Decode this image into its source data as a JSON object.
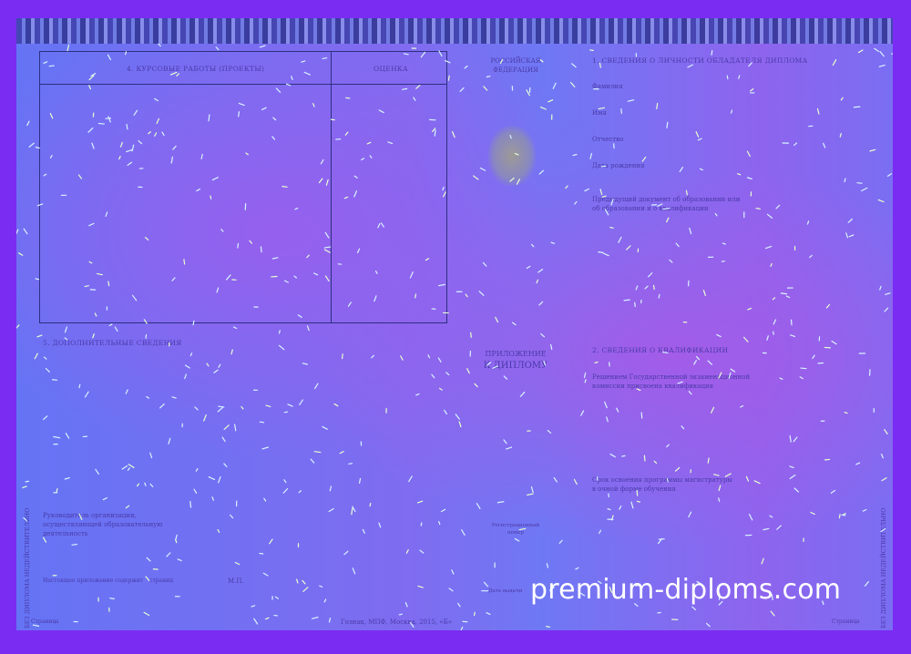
{
  "left_page": {
    "table": {
      "col1_header": "4. КУРСОВЫЕ РАБОТЫ (ПРОЕКТЫ)",
      "col2_header": "ОЦЕНКА"
    },
    "section5_title": "5. ДОПОЛНИТЕЛЬНЫЕ СВЕДЕНИЯ",
    "head_line1": "Руководитель организации,",
    "head_line2": "осуществляющей образовательную",
    "head_line3": "деятельность",
    "stamp_place": "М.П.",
    "pages_text": "Настоящее приложение содержит",
    "pages_suffix": "страниц",
    "page_label": "Страница",
    "printer": "Гознак, МПФ, Москва, 2015, «Б»",
    "vertical_note": "БЕЗ ДИПЛОМА НЕДЕЙСТВИТЕЛЬНО"
  },
  "center": {
    "country_line1": "РОССИЙСКАЯ",
    "country_line2": "ФЕДЕРАЦИЯ",
    "title_line1": "ПРИЛОЖЕНИЕ",
    "title_line2": "К ДИПЛОМУ",
    "reg_number_line1": "Регистрационный",
    "reg_number_line2": "номер",
    "issue_date": "Дата выдачи"
  },
  "right_page": {
    "section1_title": "1. СВЕДЕНИЯ О ЛИЧНОСТИ ОБЛАДАТЕЛЯ ДИПЛОМА",
    "surname": "Фамилия",
    "name": "Имя",
    "patronymic": "Отчество",
    "birth_date": "Дата рождения",
    "prev_doc_line1": "Предыдущий документ об образовании или",
    "prev_doc_line2": "об образовании и о квалификации",
    "section2_title": "2. СВЕДЕНИЯ О КВАЛИФИКАЦИИ",
    "qual_line1": "Решением Государственной экзаменационной",
    "qual_line2": "комиссии присвоена квалификация",
    "term_line1": "Срок освоения программы магистратуры",
    "term_line2": "в очной форме обучения",
    "page_label": "Страница",
    "vertical_note": "БЕЗ ДИПЛОМА НЕДЕЙСТВИТЕЛЬНО"
  },
  "watermark": "premium-diploms.com",
  "colors": {
    "background": "#7b2cf2",
    "paper_blue": "#6574f4",
    "paper_purple": "#a25ce8",
    "ink": "#4a3aa8"
  }
}
